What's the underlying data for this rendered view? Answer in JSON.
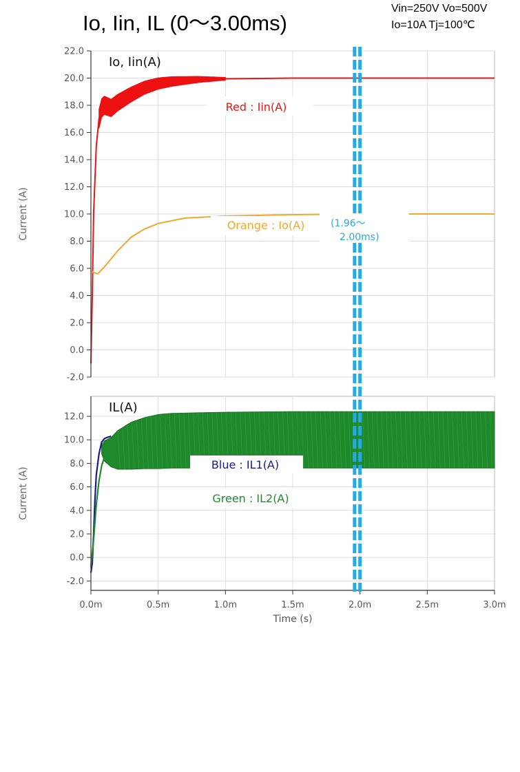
{
  "header": {
    "title": "Io, Iin, IL (0～3.00ms)",
    "conditions_line1": "Vin=250V Vo=500V",
    "conditions_line2": "Io=10A Tj=100℃"
  },
  "chart_data": [
    {
      "type": "line",
      "panel_label": "Io, Iin(A)",
      "ylabel": "Current (A)",
      "ylim": [
        -2,
        22
      ],
      "yticks": [
        "-2.0",
        "0.0",
        "2.0",
        "4.0",
        "6.0",
        "8.0",
        "10.0",
        "12.0",
        "14.0",
        "16.0",
        "18.0",
        "20.0",
        "22.0"
      ],
      "xlim": [
        0,
        3.0
      ],
      "grid": true,
      "series": [
        {
          "name": "Red : Iin(A)",
          "color": "#ee1111",
          "ripple_band": {
            "t_end": 1.0,
            "start": 0.7,
            "end": 0.1
          },
          "x": [
            0,
            0.01,
            0.02,
            0.04,
            0.06,
            0.08,
            0.1,
            0.15,
            0.2,
            0.3,
            0.4,
            0.5,
            0.6,
            0.8,
            1.0,
            1.5,
            2.0,
            2.5,
            3.0
          ],
          "y": [
            -1.0,
            4.0,
            10.0,
            15.0,
            17.0,
            17.8,
            18.0,
            17.8,
            18.2,
            18.8,
            19.3,
            19.6,
            19.75,
            19.9,
            19.95,
            20.0,
            20.0,
            20.0,
            20.0
          ]
        },
        {
          "name": "Orange : Io(A)",
          "color": "#f2a62c",
          "x": [
            0,
            0.02,
            0.05,
            0.1,
            0.2,
            0.3,
            0.4,
            0.5,
            0.7,
            1.0,
            1.5,
            2.0,
            2.5,
            3.0
          ],
          "y": [
            5.8,
            5.7,
            5.6,
            6.1,
            7.3,
            8.3,
            8.9,
            9.3,
            9.7,
            9.85,
            9.95,
            10.0,
            10.0,
            10.0
          ]
        }
      ],
      "annotation": {
        "text_line1": "(1.96～",
        "text_line2": "2.00ms)"
      }
    },
    {
      "type": "line",
      "panel_label": "IL(A)",
      "ylabel": "Current (A)",
      "xlabel": "Time (s)",
      "ylim": [
        -2.5,
        14
      ],
      "yticks": [
        "-2.0",
        "0.0",
        "2.0",
        "4.0",
        "6.0",
        "8.0",
        "10.0",
        "12.0"
      ],
      "xticks": [
        "0.0m",
        "0.5m",
        "1.0m",
        "1.5m",
        "2.0m",
        "2.5m",
        "3.0m"
      ],
      "xlim": [
        0,
        3.0
      ],
      "grid": true,
      "series": [
        {
          "name": "Blue : IL1(A)",
          "color": "#1a1a8a",
          "x": [
            0,
            0.01,
            0.02,
            0.03,
            0.04,
            0.06,
            0.08,
            0.1,
            0.12,
            0.15
          ],
          "y": [
            -1.3,
            -0.5,
            2.0,
            5.0,
            7.0,
            8.8,
            9.8,
            10.1,
            10.2,
            10.3
          ]
        },
        {
          "name": "Green : IL2(A)",
          "color": "#1e8a2c",
          "x": [
            0,
            0.02,
            0.04,
            0.06,
            0.08,
            0.1
          ],
          "y": [
            -0.8,
            1.5,
            4.5,
            6.5,
            7.8,
            8.5
          ]
        }
      ],
      "envelope": {
        "color": "#1e8a2c",
        "x": [
          0.08,
          0.1,
          0.15,
          0.2,
          0.3,
          0.4,
          0.5,
          0.6,
          0.8,
          1.0,
          1.5,
          2.0,
          3.0
        ],
        "upper": [
          9.5,
          9.9,
          10.2,
          10.8,
          11.5,
          11.9,
          12.15,
          12.25,
          12.3,
          12.35,
          12.4,
          12.4,
          12.4
        ],
        "lower": [
          8.8,
          8.2,
          7.7,
          7.5,
          7.5,
          7.55,
          7.55,
          7.6,
          7.6,
          7.6,
          7.6,
          7.6,
          7.6
        ]
      },
      "marker_band_ms": [
        1.96,
        2.0
      ]
    }
  ]
}
